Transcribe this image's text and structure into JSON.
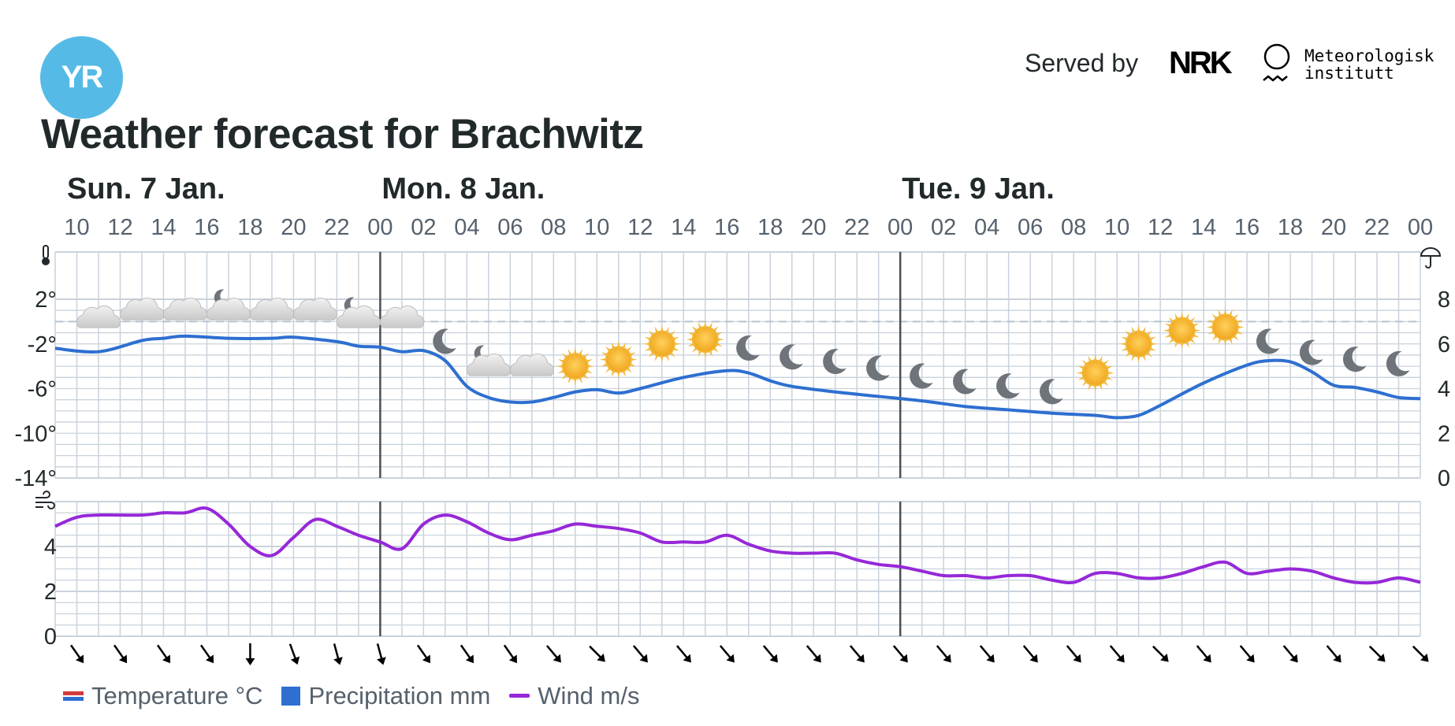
{
  "header": {
    "logo_text": "YR",
    "served_by": "Served by",
    "nrk_text": "NRK",
    "met_line1": "Meteorologisk",
    "met_line2": "institutt"
  },
  "title": "Weather forecast for Brachwitz",
  "colors": {
    "temperature": "#2e6fd0",
    "wind": "#9628d8",
    "precipitation": "#2e6fd0",
    "grid": "#c9d2dc",
    "day_divider": "#4a4f55",
    "logo": "#55bbe6"
  },
  "legend": {
    "temperature": "Temperature °C",
    "precipitation": "Precipitation mm",
    "wind": "Wind m/s"
  },
  "chart_data": {
    "type": "line",
    "days": [
      {
        "label": "Sun. 7 Jan.",
        "start_hour": 10
      },
      {
        "label": "Mon. 8 Jan.",
        "start_hour": 24
      },
      {
        "label": "Tue. 9 Jan.",
        "start_hour": 48
      }
    ],
    "x_ticks": [
      "10",
      "12",
      "14",
      "16",
      "18",
      "20",
      "22",
      "00",
      "02",
      "04",
      "06",
      "08",
      "10",
      "12",
      "14",
      "16",
      "18",
      "20",
      "22",
      "00",
      "02",
      "04",
      "06",
      "08",
      "10",
      "12",
      "14",
      "16",
      "18",
      "20",
      "22",
      "00"
    ],
    "x_range_hours": [
      9,
      72
    ],
    "temperature": {
      "unit": "°C",
      "yticks": [
        "2°",
        "-2°",
        "-6°",
        "-10°",
        "-14°"
      ],
      "ylim": [
        -14,
        2
      ],
      "zero_line": 0,
      "points": [
        [
          9,
          -2.4
        ],
        [
          11,
          -2.7
        ],
        [
          13,
          -1.7
        ],
        [
          14,
          -1.5
        ],
        [
          15,
          -1.3
        ],
        [
          17,
          -1.5
        ],
        [
          19,
          -1.5
        ],
        [
          20,
          -1.4
        ],
        [
          22,
          -1.8
        ],
        [
          23,
          -2.2
        ],
        [
          24,
          -2.3
        ],
        [
          25,
          -2.7
        ],
        [
          26,
          -2.6
        ],
        [
          27,
          -3.5
        ],
        [
          28,
          -5.8
        ],
        [
          29,
          -6.8
        ],
        [
          30,
          -7.2
        ],
        [
          31,
          -7.2
        ],
        [
          32,
          -6.8
        ],
        [
          33,
          -6.3
        ],
        [
          34,
          -6.1
        ],
        [
          35,
          -6.4
        ],
        [
          36,
          -6.0
        ],
        [
          38,
          -5.0
        ],
        [
          40,
          -4.4
        ],
        [
          41,
          -4.6
        ],
        [
          42,
          -5.3
        ],
        [
          43,
          -5.8
        ],
        [
          45,
          -6.3
        ],
        [
          47,
          -6.7
        ],
        [
          49,
          -7.1
        ],
        [
          51,
          -7.6
        ],
        [
          53,
          -7.9
        ],
        [
          55,
          -8.2
        ],
        [
          57,
          -8.4
        ],
        [
          58,
          -8.6
        ],
        [
          59,
          -8.4
        ],
        [
          60,
          -7.5
        ],
        [
          62,
          -5.5
        ],
        [
          64,
          -3.9
        ],
        [
          65,
          -3.5
        ],
        [
          66,
          -3.6
        ],
        [
          67,
          -4.5
        ],
        [
          68,
          -5.7
        ],
        [
          69,
          -5.9
        ],
        [
          70,
          -6.3
        ],
        [
          71,
          -6.8
        ],
        [
          72,
          -6.9
        ],
        [
          73,
          -7.0
        ],
        [
          74,
          -7.2
        ]
      ]
    },
    "precipitation": {
      "unit": "mm",
      "yticks": [
        "8",
        "6",
        "4",
        "2",
        "0"
      ],
      "ylim": [
        0,
        10
      ],
      "values": []
    },
    "wind": {
      "unit": "m/s",
      "yticks": [
        "4",
        "2",
        "0"
      ],
      "ylim": [
        0,
        6
      ],
      "points": [
        [
          9,
          4.9
        ],
        [
          10,
          5.3
        ],
        [
          11,
          5.4
        ],
        [
          13,
          5.4
        ],
        [
          14,
          5.5
        ],
        [
          15,
          5.5
        ],
        [
          16,
          5.7
        ],
        [
          17,
          5.0
        ],
        [
          18,
          4.0
        ],
        [
          19,
          3.6
        ],
        [
          20,
          4.4
        ],
        [
          21,
          5.2
        ],
        [
          22,
          4.9
        ],
        [
          23,
          4.5
        ],
        [
          24,
          4.2
        ],
        [
          25,
          3.9
        ],
        [
          26,
          5.0
        ],
        [
          27,
          5.4
        ],
        [
          28,
          5.1
        ],
        [
          29,
          4.6
        ],
        [
          30,
          4.3
        ],
        [
          31,
          4.5
        ],
        [
          32,
          4.7
        ],
        [
          33,
          5.0
        ],
        [
          34,
          4.9
        ],
        [
          35,
          4.8
        ],
        [
          36,
          4.6
        ],
        [
          37,
          4.2
        ],
        [
          38,
          4.2
        ],
        [
          39,
          4.2
        ],
        [
          40,
          4.5
        ],
        [
          41,
          4.1
        ],
        [
          42,
          3.8
        ],
        [
          43,
          3.7
        ],
        [
          44,
          3.7
        ],
        [
          45,
          3.7
        ],
        [
          46,
          3.4
        ],
        [
          47,
          3.2
        ],
        [
          48,
          3.1
        ],
        [
          49,
          2.9
        ],
        [
          50,
          2.7
        ],
        [
          51,
          2.7
        ],
        [
          52,
          2.6
        ],
        [
          53,
          2.7
        ],
        [
          54,
          2.7
        ],
        [
          55,
          2.5
        ],
        [
          56,
          2.4
        ],
        [
          57,
          2.8
        ],
        [
          58,
          2.8
        ],
        [
          59,
          2.6
        ],
        [
          60,
          2.6
        ],
        [
          61,
          2.8
        ],
        [
          62,
          3.1
        ],
        [
          63,
          3.3
        ],
        [
          64,
          2.8
        ],
        [
          65,
          2.9
        ],
        [
          66,
          3.0
        ],
        [
          67,
          2.9
        ],
        [
          68,
          2.6
        ],
        [
          69,
          2.4
        ],
        [
          70,
          2.4
        ],
        [
          71,
          2.6
        ],
        [
          72,
          2.4
        ]
      ]
    },
    "wind_arrows": [
      {
        "hour": 10,
        "deg": -35
      },
      {
        "hour": 12,
        "deg": -35
      },
      {
        "hour": 14,
        "deg": -35
      },
      {
        "hour": 16,
        "deg": -35
      },
      {
        "hour": 18,
        "deg": 0
      },
      {
        "hour": 20,
        "deg": -20
      },
      {
        "hour": 22,
        "deg": -15
      },
      {
        "hour": 24,
        "deg": -15
      },
      {
        "hour": 26,
        "deg": -35
      },
      {
        "hour": 28,
        "deg": -35
      },
      {
        "hour": 30,
        "deg": -35
      },
      {
        "hour": 32,
        "deg": -40
      },
      {
        "hour": 34,
        "deg": -45
      },
      {
        "hour": 36,
        "deg": -40
      },
      {
        "hour": 38,
        "deg": -40
      },
      {
        "hour": 40,
        "deg": -40
      },
      {
        "hour": 42,
        "deg": -40
      },
      {
        "hour": 44,
        "deg": -40
      },
      {
        "hour": 46,
        "deg": -40
      },
      {
        "hour": 48,
        "deg": -40
      },
      {
        "hour": 50,
        "deg": -40
      },
      {
        "hour": 52,
        "deg": -40
      },
      {
        "hour": 54,
        "deg": -40
      },
      {
        "hour": 56,
        "deg": -40
      },
      {
        "hour": 58,
        "deg": -40
      },
      {
        "hour": 60,
        "deg": -45
      },
      {
        "hour": 62,
        "deg": -40
      },
      {
        "hour": 64,
        "deg": -40
      },
      {
        "hour": 66,
        "deg": -40
      },
      {
        "hour": 68,
        "deg": -40
      },
      {
        "hour": 70,
        "deg": -45
      },
      {
        "hour": 72,
        "deg": -45
      }
    ],
    "weather_icons": [
      {
        "hour": 11,
        "icon": "cloud",
        "temp": 0.3
      },
      {
        "hour": 13,
        "icon": "cloud",
        "temp": 1.0
      },
      {
        "hour": 15,
        "icon": "cloud",
        "temp": 1.0
      },
      {
        "hour": 17,
        "icon": "partly-cloudy-night",
        "temp": 1.0
      },
      {
        "hour": 19,
        "icon": "cloud",
        "temp": 1.0
      },
      {
        "hour": 21,
        "icon": "cloud",
        "temp": 1.0
      },
      {
        "hour": 23,
        "icon": "partly-cloudy-night",
        "temp": 0.3
      },
      {
        "hour": 25,
        "icon": "cloud",
        "temp": 0.3
      },
      {
        "hour": 27,
        "icon": "moon",
        "temp": -1.8
      },
      {
        "hour": 29,
        "icon": "partly-cloudy-night",
        "temp": -4.0
      },
      {
        "hour": 31,
        "icon": "cloud",
        "temp": -4.0
      },
      {
        "hour": 33,
        "icon": "sun",
        "temp": -4.0
      },
      {
        "hour": 35,
        "icon": "sun",
        "temp": -3.4
      },
      {
        "hour": 37,
        "icon": "sun",
        "temp": -2.0
      },
      {
        "hour": 39,
        "icon": "sun",
        "temp": -1.6
      },
      {
        "hour": 41,
        "icon": "moon",
        "temp": -2.4
      },
      {
        "hour": 43,
        "icon": "moon",
        "temp": -3.2
      },
      {
        "hour": 45,
        "icon": "moon",
        "temp": -3.6
      },
      {
        "hour": 47,
        "icon": "moon",
        "temp": -4.2
      },
      {
        "hour": 49,
        "icon": "moon",
        "temp": -4.9
      },
      {
        "hour": 51,
        "icon": "moon",
        "temp": -5.4
      },
      {
        "hour": 53,
        "icon": "moon",
        "temp": -5.8
      },
      {
        "hour": 55,
        "icon": "moon",
        "temp": -6.3
      },
      {
        "hour": 57,
        "icon": "sun",
        "temp": -4.6
      },
      {
        "hour": 59,
        "icon": "sun",
        "temp": -2.0
      },
      {
        "hour": 61,
        "icon": "sun",
        "temp": -0.8
      },
      {
        "hour": 63,
        "icon": "sun",
        "temp": -0.5
      },
      {
        "hour": 65,
        "icon": "moon",
        "temp": -1.8
      },
      {
        "hour": 67,
        "icon": "moon",
        "temp": -2.8
      },
      {
        "hour": 69,
        "icon": "moon",
        "temp": -3.4
      },
      {
        "hour": 71,
        "icon": "moon",
        "temp": -3.8
      }
    ],
    "axis_icons": {
      "temperature": "thermometer-icon",
      "precipitation": "umbrella-icon",
      "wind": "wind-icon"
    }
  }
}
